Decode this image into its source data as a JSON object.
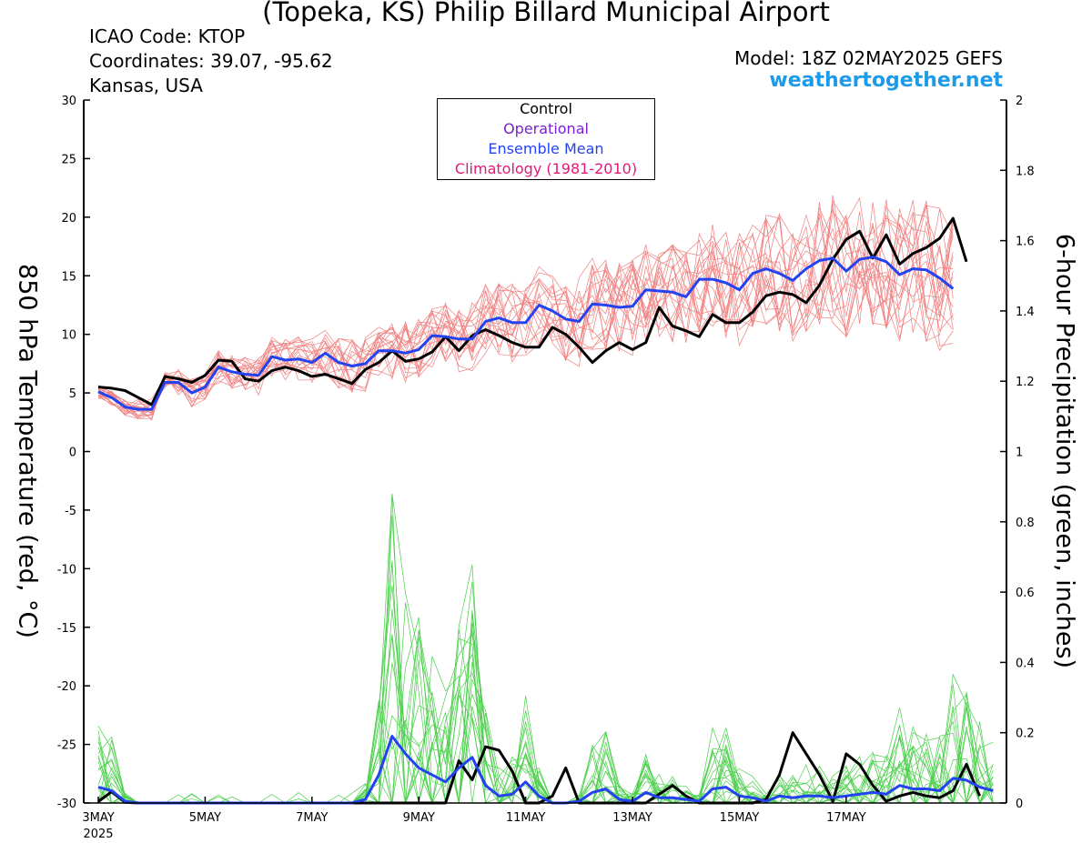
{
  "header": {
    "title": "(Topeka, KS) Philip Billard Municipal Airport",
    "icao": "ICAO Code: KTOP",
    "coordinates": "Coordinates: 39.07, -95.62",
    "region": "Kansas, USA",
    "model": "Model: 18Z 02MAY2025 GEFS",
    "site": "weathertogether.net"
  },
  "legend": {
    "control": "Control",
    "operational": "Operational",
    "ensemble_mean": "Ensemble Mean",
    "climatology": "Climatology (1981-2010)"
  },
  "colors": {
    "temperature_members": "#f08080",
    "precip_members": "#4ccf4c",
    "control": "#000000",
    "operational": "#7b1fd6",
    "ensemble_mean": "#2343f0",
    "climatology": "#e8157a",
    "site": "#1e9be8"
  },
  "chart_data": {
    "type": "line",
    "title": "(Topeka, KS) Philip Billard Municipal Airport",
    "xlabel": "",
    "ylabel": "850 hPa Temperature (red, °C)",
    "ylabel_right": "6-hour Precipitation (green, inches)",
    "x_start": "2025-05-03T00Z",
    "x_step_hours": 6,
    "x_ticks": [
      "3MAY",
      "5MAY",
      "7MAY",
      "9MAY",
      "11MAY",
      "13MAY",
      "15MAY",
      "17MAY"
    ],
    "x_tick_sub": "2025",
    "ylim": [
      -30,
      30
    ],
    "y_ticks": [
      30,
      25,
      20,
      15,
      10,
      5,
      0,
      -5,
      -10,
      -15,
      -20,
      -25,
      -30
    ],
    "y2lim": [
      0,
      2
    ],
    "y2_ticks": [
      2,
      1.8,
      1.6,
      1.4,
      1.2,
      1,
      0.8,
      0.6,
      0.4,
      0.2,
      0
    ],
    "grid": false,
    "legend_position": "top-center",
    "series": [
      {
        "name": "Control",
        "axis": "left",
        "values": [
          5.5,
          5.4,
          5.2,
          4.6,
          4.0,
          6.4,
          6.2,
          5.9,
          6.5,
          7.8,
          7.7,
          6.2,
          6.0,
          6.9,
          7.2,
          6.9,
          6.4,
          6.6,
          6.2,
          5.8,
          7.0,
          7.6,
          8.6,
          7.7,
          7.9,
          8.5,
          9.8,
          8.6,
          9.9,
          10.4,
          9.9,
          9.3,
          8.9,
          8.9,
          10.6,
          10.0,
          8.9,
          7.6,
          8.6,
          9.3,
          8.7,
          9.3,
          12.3,
          10.7,
          10.3,
          9.8,
          11.7,
          11.0,
          11.0,
          11.9,
          13.3,
          13.6,
          13.4,
          12.7,
          14.2,
          16.4,
          18.1,
          18.8,
          16.5,
          18.5,
          16.0,
          16.9,
          17.4,
          18.2,
          19.9,
          16.2
        ]
      },
      {
        "name": "Ensemble Mean",
        "axis": "left",
        "values": [
          5.1,
          4.6,
          3.8,
          3.6,
          3.6,
          5.9,
          5.9,
          5.0,
          5.5,
          7.2,
          6.8,
          6.6,
          6.5,
          8.1,
          7.8,
          7.9,
          7.6,
          8.4,
          7.6,
          7.3,
          7.5,
          8.6,
          8.6,
          8.4,
          8.7,
          9.9,
          9.8,
          9.6,
          9.6,
          11.1,
          11.4,
          11.0,
          11.0,
          12.5,
          12.0,
          11.3,
          11.1,
          12.6,
          12.5,
          12.3,
          12.4,
          13.8,
          13.7,
          13.6,
          13.2,
          14.7,
          14.7,
          14.4,
          13.8,
          15.2,
          15.6,
          15.2,
          14.6,
          15.6,
          16.3,
          16.5,
          15.4,
          16.4,
          16.6,
          16.2,
          15.1,
          15.6,
          15.5,
          14.8,
          13.9
        ]
      },
      {
        "name": "Control",
        "axis": "right",
        "values": [
          0.004,
          0.032,
          0.002,
          0,
          0,
          0,
          0,
          0,
          0,
          0,
          0,
          0,
          0,
          0,
          0,
          0,
          0,
          0,
          0,
          0,
          0,
          0,
          0,
          0,
          0,
          0,
          0,
          0.12,
          0.066,
          0.16,
          0.15,
          0.09,
          0,
          0,
          0.02,
          0.1,
          0,
          0,
          0,
          0,
          0,
          0,
          0.025,
          0.05,
          0.02,
          0,
          0,
          0,
          0,
          0,
          0.01,
          0.08,
          0.2,
          0.14,
          0.08,
          0.005,
          0.14,
          0.11,
          0.05,
          0.005,
          0.02,
          0.03,
          0.02,
          0.015,
          0.035,
          0.11,
          0.02
        ]
      },
      {
        "name": "Ensemble Mean",
        "axis": "right",
        "values": [
          0.045,
          0.035,
          0.005,
          0,
          0,
          0,
          0,
          0,
          0,
          0,
          0,
          0,
          0,
          0,
          0,
          0,
          0,
          0,
          0,
          0,
          0.01,
          0.08,
          0.19,
          0.14,
          0.1,
          0.08,
          0.06,
          0.1,
          0.13,
          0.05,
          0.02,
          0.025,
          0.06,
          0.02,
          0,
          0,
          0.005,
          0.03,
          0.04,
          0.01,
          0.005,
          0.03,
          0.015,
          0.015,
          0.01,
          0.005,
          0.04,
          0.045,
          0.02,
          0.015,
          0.005,
          0.02,
          0.015,
          0.02,
          0.02,
          0.015,
          0.02,
          0.025,
          0.03,
          0.025,
          0.05,
          0.04,
          0.04,
          0.035,
          0.07,
          0.065,
          0.045,
          0.035
        ]
      }
    ]
  }
}
